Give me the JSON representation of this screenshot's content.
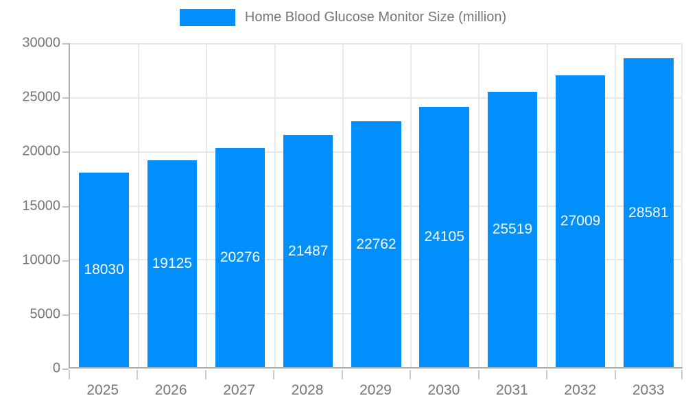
{
  "colors": {
    "bar": "#008FFB",
    "axis_line": "#aeaeae",
    "grid_line": "#e8e8e8",
    "tick_line": "#c2c2c2",
    "label_text": "#757575",
    "bar_label_text": "#ffffff",
    "background": "#ffffff"
  },
  "legend": {
    "label": "Home Blood Glucose Monitor Size (million)",
    "position": "top",
    "swatch_color": "#008FFB"
  },
  "chart_data": {
    "type": "bar",
    "title": "Home Blood Glucose Monitor Size (million)",
    "categories": [
      "2025",
      "2026",
      "2027",
      "2028",
      "2029",
      "2030",
      "2031",
      "2032",
      "2033"
    ],
    "series": [
      {
        "name": "Home Blood Glucose Monitor Size (million)",
        "values": [
          18030,
          19125,
          20276,
          21487,
          22762,
          24105,
          25519,
          27009,
          28581
        ]
      }
    ],
    "data_labels": [
      "18030",
      "19125",
      "20276",
      "21487",
      "22762",
      "24105",
      "25519",
      "27009",
      "28581"
    ],
    "data_label_placement": "inside-center-white",
    "xlabel": "",
    "ylabel": "",
    "ylim": [
      0,
      30000
    ],
    "yticks": [
      0,
      5000,
      10000,
      15000,
      20000,
      25000,
      30000
    ],
    "ytick_labels": [
      "0",
      "5000",
      "10000",
      "15000",
      "20000",
      "25000",
      "30000"
    ],
    "grid": true,
    "legend_position": "top",
    "bar_color": "#008FFB"
  }
}
